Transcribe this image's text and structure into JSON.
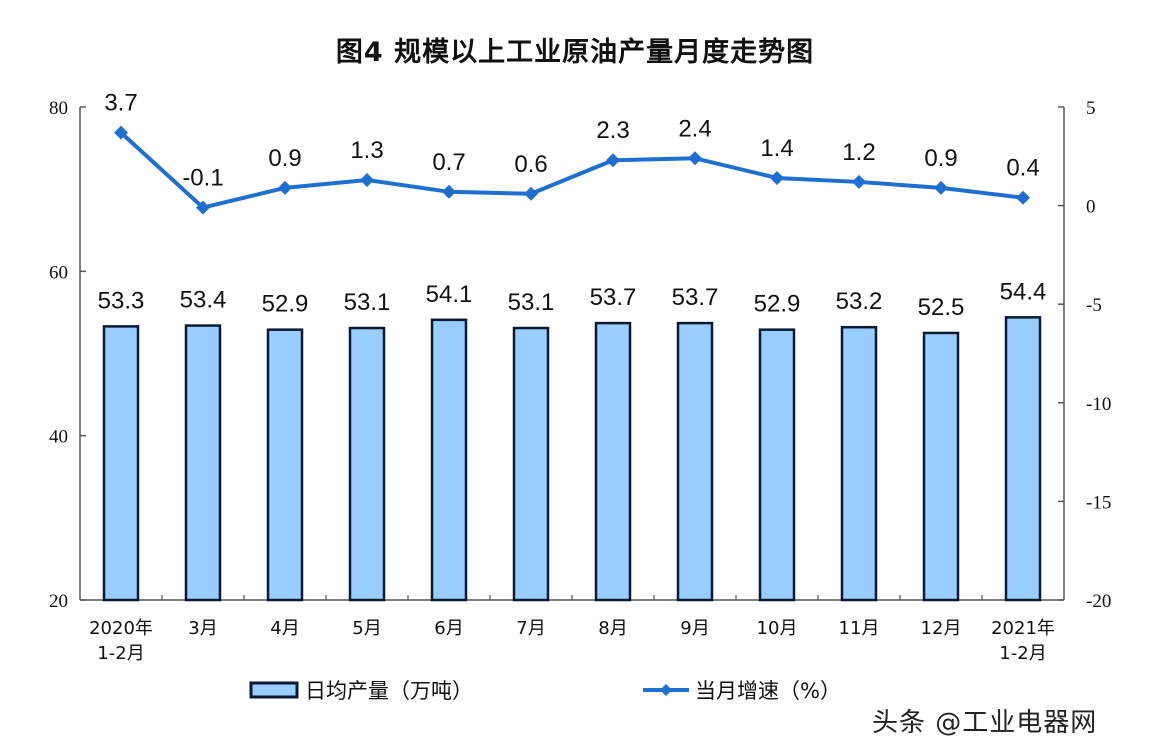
{
  "title": "图4  规模以上工业原油产量月度走势图",
  "watermark": "头条 @工业电器网",
  "colors": {
    "bar_fill": "#99CCFF",
    "bar_stroke": "#0A1A33",
    "line": "#1F6FD0",
    "axis": "#555555",
    "text": "#111111"
  },
  "chart_data": {
    "type": "bar+line",
    "title": "图4  规模以上工业原油产量月度走势图",
    "categories": [
      "2020年\n1-2月",
      "3月",
      "4月",
      "5月",
      "6月",
      "7月",
      "8月",
      "9月",
      "10月",
      "11月",
      "12月",
      "2021年\n1-2月"
    ],
    "category_lines": [
      [
        "2020年",
        "1-2月"
      ],
      [
        "3月"
      ],
      [
        "4月"
      ],
      [
        "5月"
      ],
      [
        "6月"
      ],
      [
        "7月"
      ],
      [
        "8月"
      ],
      [
        "9月"
      ],
      [
        "10月"
      ],
      [
        "11月"
      ],
      [
        "12月"
      ],
      [
        "2021年",
        "1-2月"
      ]
    ],
    "series": [
      {
        "name": "日均产量（万吨）",
        "type": "bar",
        "axis": "left",
        "values": [
          53.3,
          53.4,
          52.9,
          53.1,
          54.1,
          53.1,
          53.7,
          53.7,
          52.9,
          53.2,
          52.5,
          54.4
        ]
      },
      {
        "name": "当月增速（%）",
        "type": "line",
        "axis": "right",
        "marker": "diamond",
        "values": [
          3.7,
          -0.1,
          0.9,
          1.3,
          0.7,
          0.6,
          2.3,
          2.4,
          1.4,
          1.2,
          0.9,
          0.4
        ]
      }
    ],
    "left_axis": {
      "ylim": [
        20,
        80
      ],
      "ticks": [
        "80",
        "60",
        "40",
        "20"
      ],
      "tick_values": [
        80,
        60,
        40,
        20
      ]
    },
    "right_axis": {
      "ylim": [
        -20,
        5
      ],
      "ticks": [
        "5",
        "0",
        "-5",
        "-10",
        "-15",
        "-20"
      ],
      "tick_values": [
        5,
        0,
        -5,
        -10,
        -15,
        -20
      ]
    },
    "grid": false,
    "legend_position": "bottom",
    "legend": [
      "日均产量（万吨）",
      "当月增速（%）"
    ]
  }
}
